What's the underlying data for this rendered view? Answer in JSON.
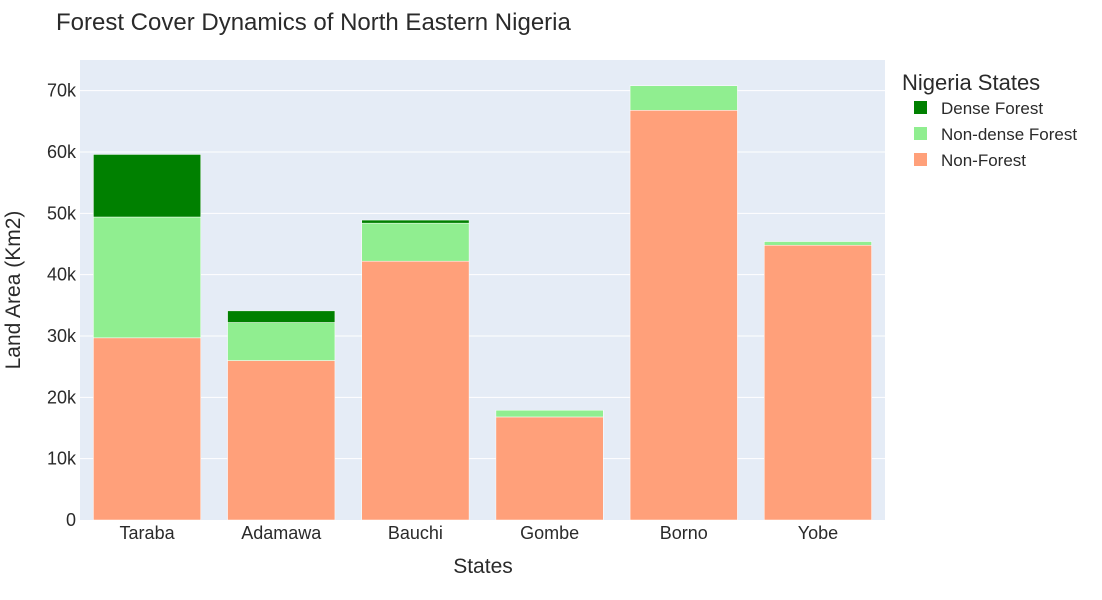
{
  "chart_data": {
    "type": "bar",
    "stacked": true,
    "title": "Forest Cover Dynamics of North Eastern Nigeria",
    "xlabel": "States",
    "ylabel": "Land Area (Km2)",
    "categories": [
      "Taraba",
      "Adamawa",
      "Bauchi",
      "Gombe",
      "Borno",
      "Yobe"
    ],
    "series": [
      {
        "name": "Non-Forest",
        "color": "#ffa07a",
        "values": [
          29700,
          26000,
          42200,
          16800,
          66800,
          44800
        ]
      },
      {
        "name": "Non-dense Forest",
        "color": "#90ee90",
        "values": [
          19700,
          6200,
          6200,
          1100,
          4000,
          600
        ]
      },
      {
        "name": "Dense Forest",
        "color": "#008000",
        "values": [
          10200,
          1900,
          500,
          0,
          0,
          0
        ]
      }
    ],
    "ylim": [
      0,
      75000
    ],
    "yticks": [
      0,
      10000,
      20000,
      30000,
      40000,
      50000,
      60000,
      70000
    ],
    "ytick_labels": [
      "0",
      "10k",
      "20k",
      "30k",
      "40k",
      "50k",
      "60k",
      "70k"
    ],
    "grid": true,
    "legend": {
      "title": "Nigeria States",
      "position": "top-right",
      "entries": [
        "Dense Forest",
        "Non-dense Forest",
        "Non-Forest"
      ]
    }
  },
  "colors": {
    "plot_bg": "#e5ecf6",
    "grid": "#ffffff"
  }
}
